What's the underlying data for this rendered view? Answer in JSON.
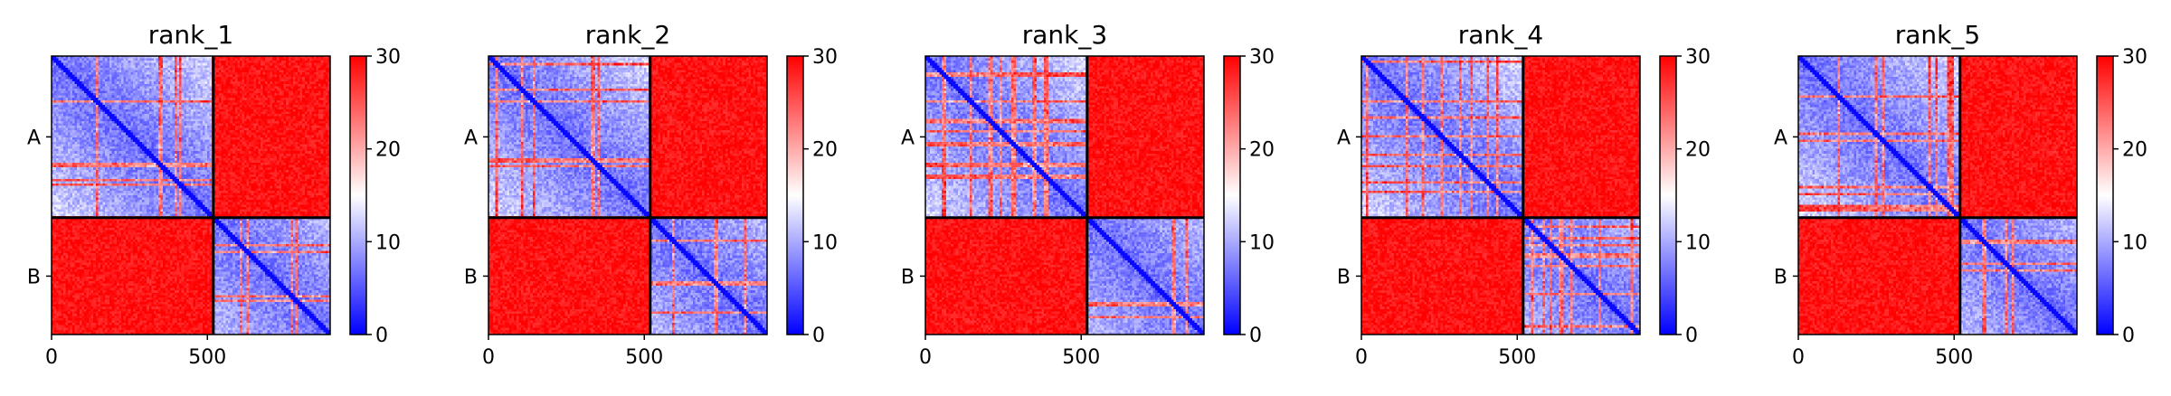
{
  "chart_data": [
    {
      "type": "heatmap",
      "title": "rank_1",
      "chains": [
        "A",
        "B"
      ],
      "chain_boundary": 519,
      "residue_count": 894,
      "xticks": [
        0,
        500
      ],
      "xtick_labels": [
        "0",
        "500"
      ],
      "colorbar": {
        "min": 0,
        "max": 30,
        "ticks": [
          0,
          10,
          20,
          30
        ],
        "tick_labels": [
          "0",
          "10",
          "20",
          "30"
        ],
        "colormap": "bwr",
        "colors": [
          "#0000ff",
          "#ffffff",
          "#ff0000"
        ]
      }
    },
    {
      "type": "heatmap",
      "title": "rank_2",
      "chains": [
        "A",
        "B"
      ],
      "chain_boundary": 519,
      "residue_count": 894,
      "xticks": [
        0,
        500
      ],
      "xtick_labels": [
        "0",
        "500"
      ],
      "colorbar": {
        "min": 0,
        "max": 30,
        "ticks": [
          0,
          10,
          20,
          30
        ],
        "tick_labels": [
          "0",
          "10",
          "20",
          "30"
        ],
        "colormap": "bwr",
        "colors": [
          "#0000ff",
          "#ffffff",
          "#ff0000"
        ]
      }
    },
    {
      "type": "heatmap",
      "title": "rank_3",
      "chains": [
        "A",
        "B"
      ],
      "chain_boundary": 519,
      "residue_count": 894,
      "xticks": [
        0,
        500
      ],
      "xtick_labels": [
        "0",
        "500"
      ],
      "colorbar": {
        "min": 0,
        "max": 30,
        "ticks": [
          0,
          10,
          20,
          30
        ],
        "tick_labels": [
          "0",
          "10",
          "20",
          "30"
        ],
        "colormap": "bwr",
        "colors": [
          "#0000ff",
          "#ffffff",
          "#ff0000"
        ]
      }
    },
    {
      "type": "heatmap",
      "title": "rank_4",
      "chains": [
        "A",
        "B"
      ],
      "chain_boundary": 519,
      "residue_count": 894,
      "xticks": [
        0,
        500
      ],
      "xtick_labels": [
        "0",
        "500"
      ],
      "colorbar": {
        "min": 0,
        "max": 30,
        "ticks": [
          0,
          10,
          20,
          30
        ],
        "tick_labels": [
          "0",
          "10",
          "20",
          "30"
        ],
        "colormap": "bwr",
        "colors": [
          "#0000ff",
          "#ffffff",
          "#ff0000"
        ]
      }
    },
    {
      "type": "heatmap",
      "title": "rank_5",
      "chains": [
        "A",
        "B"
      ],
      "chain_boundary": 519,
      "residue_count": 894,
      "xticks": [
        0,
        500
      ],
      "xtick_labels": [
        "0",
        "500"
      ],
      "colorbar": {
        "min": 0,
        "max": 30,
        "ticks": [
          0,
          10,
          20,
          30
        ],
        "tick_labels": [
          "0",
          "10",
          "20",
          "30"
        ],
        "colormap": "bwr",
        "colors": [
          "#0000ff",
          "#ffffff",
          "#ff0000"
        ]
      }
    }
  ]
}
